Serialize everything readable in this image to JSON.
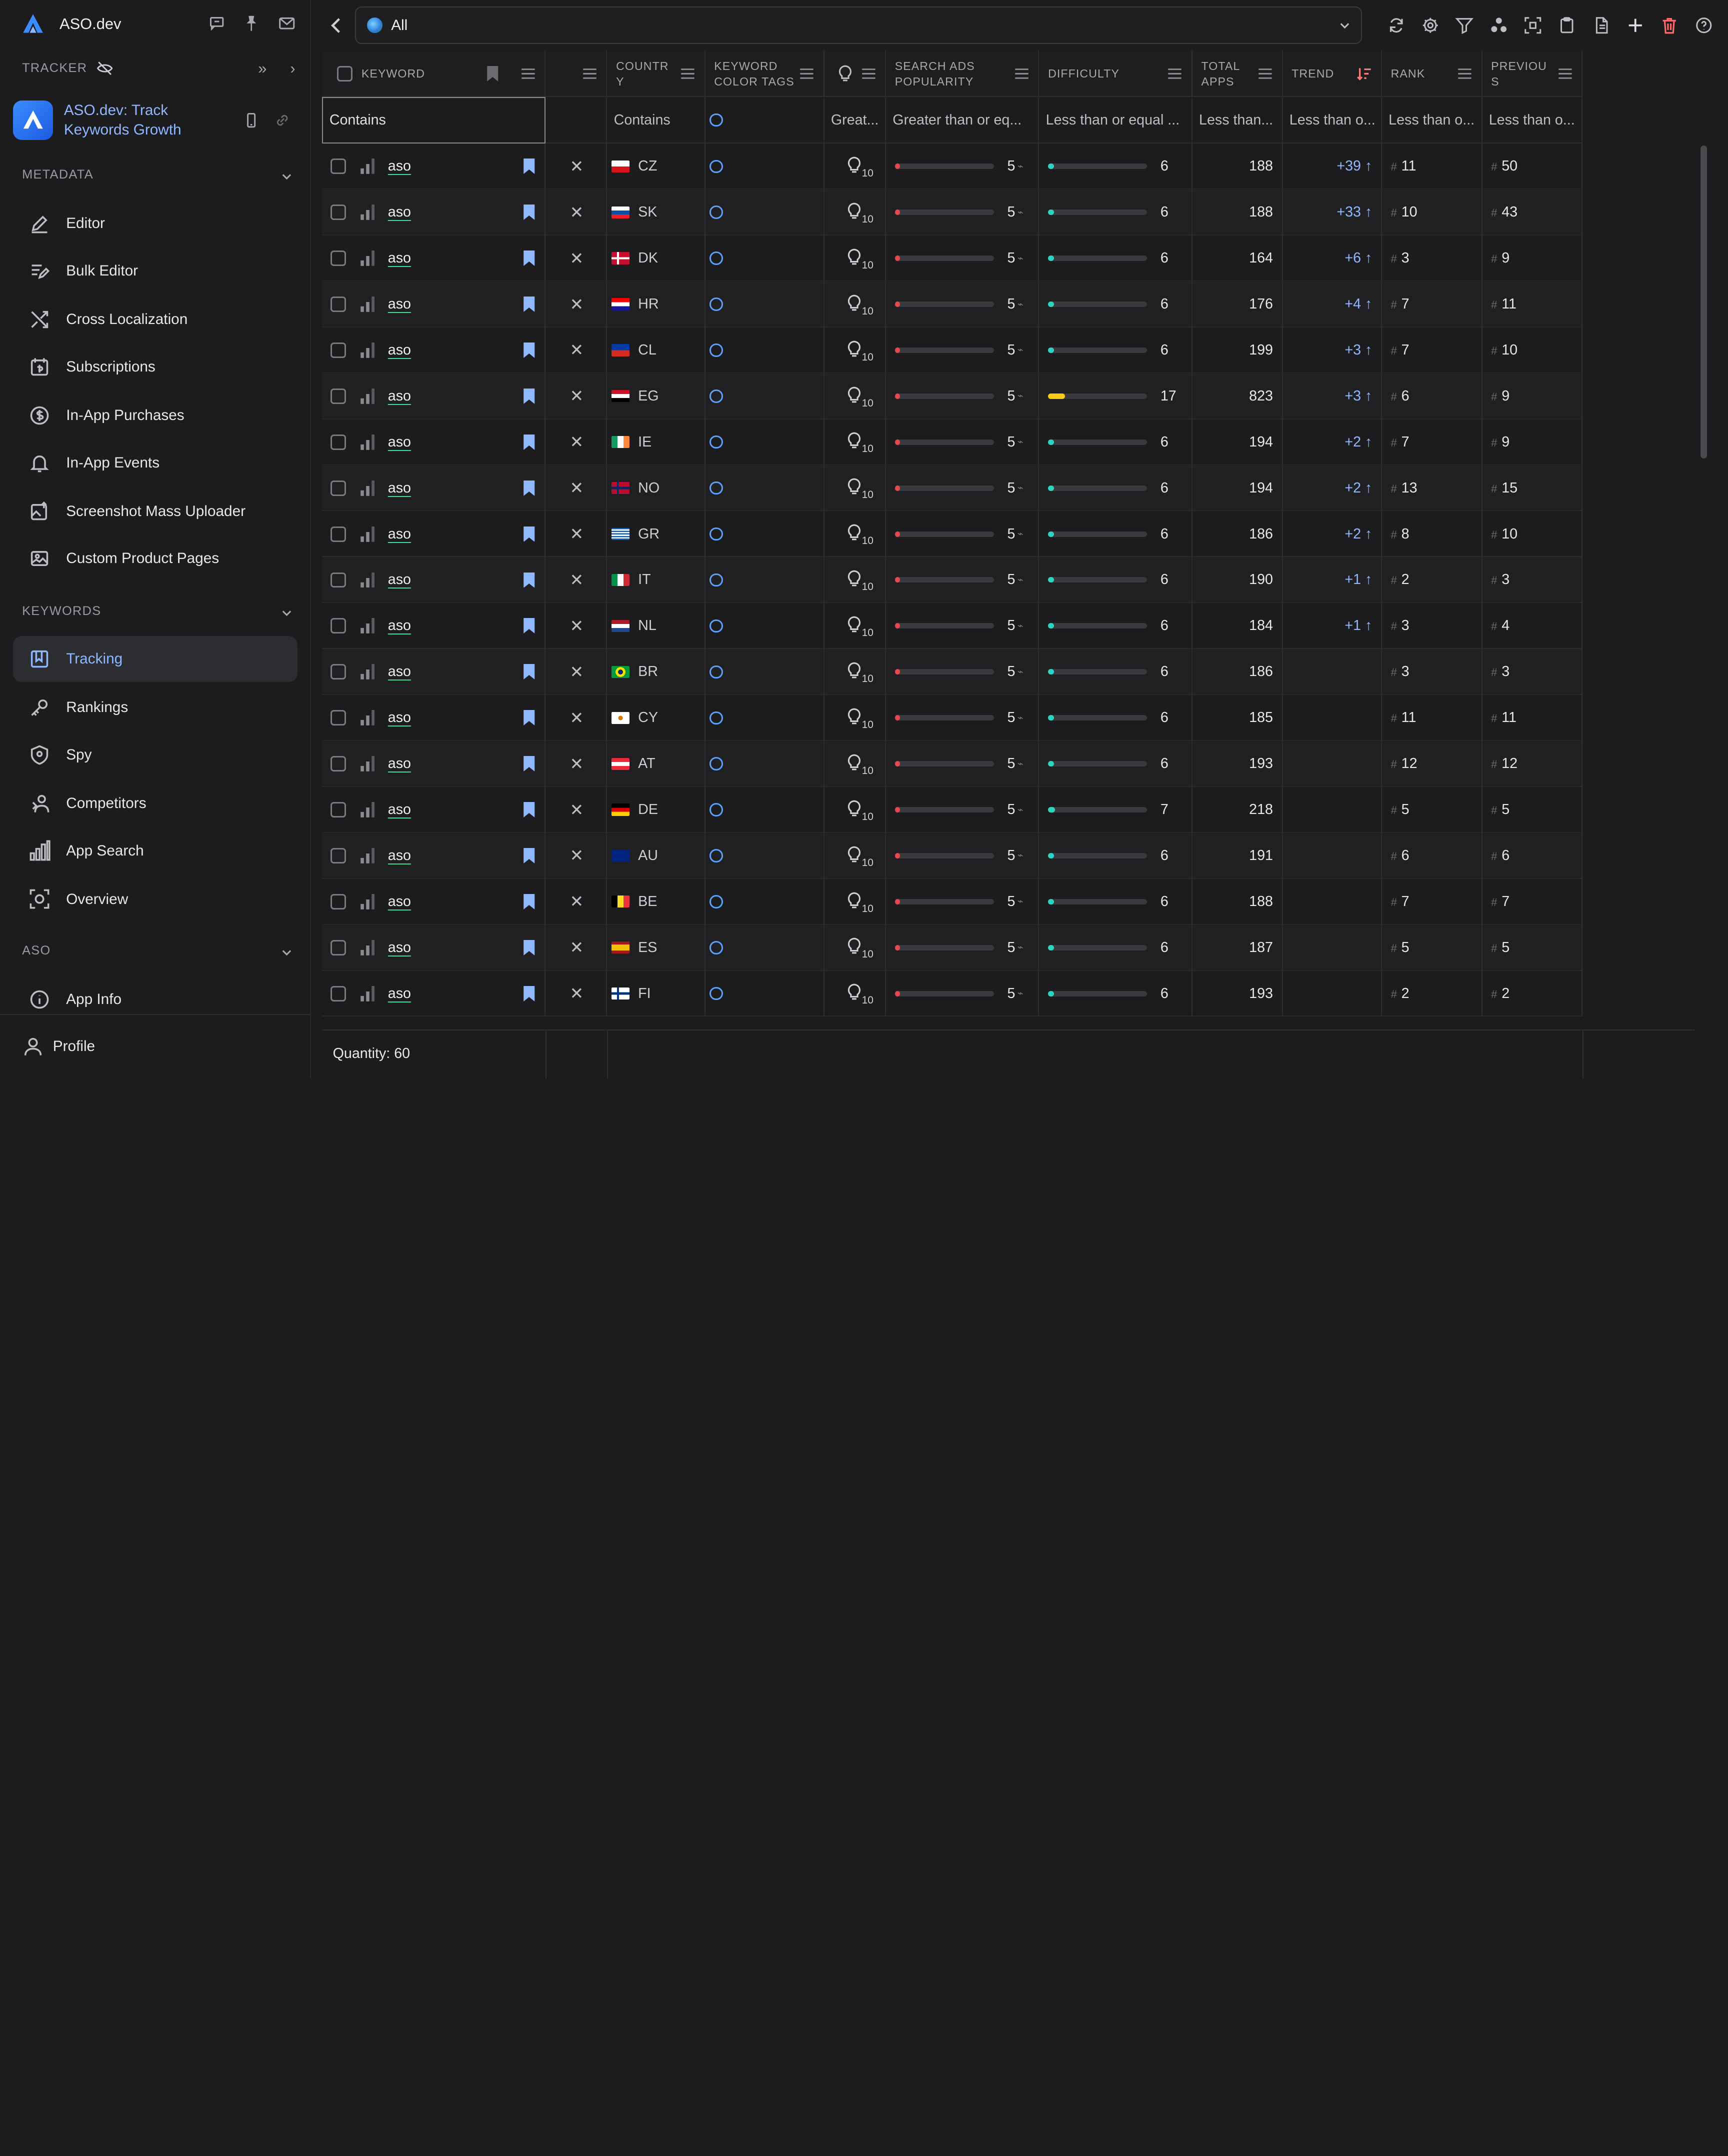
{
  "brand": {
    "name": "ASO.dev"
  },
  "sidebar": {
    "tracker_label": "TRACKER",
    "app_title_line1": "ASO.dev: Track",
    "app_title_line2": "Keywords Growth",
    "metadata_label": "METADATA",
    "metadata_items": [
      {
        "label": "Editor",
        "icon": "edit-icon"
      },
      {
        "label": "Bulk Editor",
        "icon": "bulk-edit-icon"
      },
      {
        "label": "Cross Localization",
        "icon": "cross-arrows-icon"
      },
      {
        "label": "Subscriptions",
        "icon": "subscriptions-icon"
      },
      {
        "label": "In-App Purchases",
        "icon": "dollar-icon"
      },
      {
        "label": "In-App Events",
        "icon": "bell-icon"
      },
      {
        "label": "Screenshot Mass Uploader",
        "icon": "image-upload-icon"
      },
      {
        "label": "Custom Product Pages",
        "icon": "image-icon"
      }
    ],
    "keywords_label": "KEYWORDS",
    "keywords_items": [
      {
        "label": "Tracking",
        "icon": "bookmark-icon",
        "active": true
      },
      {
        "label": "Rankings",
        "icon": "key-icon"
      },
      {
        "label": "Spy",
        "icon": "shield-icon"
      },
      {
        "label": "Competitors",
        "icon": "competitors-icon"
      },
      {
        "label": "App Search",
        "icon": "bar-chart-icon"
      },
      {
        "label": "Overview",
        "icon": "overview-icon"
      }
    ],
    "aso_label": "ASO",
    "aso_items": [
      {
        "label": "App Info",
        "icon": "info-icon"
      }
    ],
    "profile_label": "Profile"
  },
  "topbar": {
    "selected": "All"
  },
  "columns": [
    {
      "label": "KEYWORD",
      "filter": "Contains"
    },
    {
      "label": "",
      "filter": ""
    },
    {
      "label": "COUNTRY",
      "filter": "Contains"
    },
    {
      "label": "KEYWORD COLOR TAGS",
      "filter": ""
    },
    {
      "label": "",
      "filter": "Great..."
    },
    {
      "label": "SEARCH ADS POPULARITY",
      "filter": "Greater than or eq..."
    },
    {
      "label": "DIFFICULTY",
      "filter": "Less than or equal ..."
    },
    {
      "label": "TOTAL APPS",
      "filter": "Less than..."
    },
    {
      "label": "TREND",
      "filter": "Less than o..."
    },
    {
      "label": "RANK",
      "filter": "Less than o..."
    },
    {
      "label": "PREVIOUS",
      "filter": "Less than o..."
    }
  ],
  "header_labels": {
    "keyword": "KEYWORD",
    "country_1": "COUNTR",
    "country_2": "Y",
    "tags_1": "KEYWORD",
    "tags_2": "COLOR TAGS",
    "popularity_1": "SEARCH ADS",
    "popularity_2": "POPULARITY",
    "difficulty": "DIFFICULTY",
    "apps_1": "TOTAL",
    "apps_2": "APPS",
    "trend": "TREND",
    "rank": "RANK",
    "prev_1": "PREVIOU",
    "prev_2": "S"
  },
  "filters": {
    "keyword": "Contains",
    "country": "Contains",
    "bulb": "Great...",
    "popularity": "Greater than or eq...",
    "difficulty": "Less than or equal ...",
    "apps": "Less than...",
    "trend": "Less than o...",
    "rank": "Less than o...",
    "prev": "Less than o..."
  },
  "rows": [
    {
      "keyword": "aso",
      "cc": "CZ",
      "bulb": "10",
      "pop": "5",
      "diff": "6",
      "apps": "188",
      "trend": "+39",
      "rank": "11",
      "prev": "50"
    },
    {
      "keyword": "aso",
      "cc": "SK",
      "bulb": "10",
      "pop": "5",
      "diff": "6",
      "apps": "188",
      "trend": "+33",
      "rank": "10",
      "prev": "43"
    },
    {
      "keyword": "aso",
      "cc": "DK",
      "bulb": "10",
      "pop": "5",
      "diff": "6",
      "apps": "164",
      "trend": "+6",
      "rank": "3",
      "prev": "9"
    },
    {
      "keyword": "aso",
      "cc": "HR",
      "bulb": "10",
      "pop": "5",
      "diff": "6",
      "apps": "176",
      "trend": "+4",
      "rank": "7",
      "prev": "11"
    },
    {
      "keyword": "aso",
      "cc": "CL",
      "bulb": "10",
      "pop": "5",
      "diff": "6",
      "apps": "199",
      "trend": "+3",
      "rank": "7",
      "prev": "10"
    },
    {
      "keyword": "aso",
      "cc": "EG",
      "bulb": "10",
      "pop": "5",
      "diff": "17",
      "apps": "823",
      "trend": "+3",
      "rank": "6",
      "prev": "9"
    },
    {
      "keyword": "aso",
      "cc": "IE",
      "bulb": "10",
      "pop": "5",
      "diff": "6",
      "apps": "194",
      "trend": "+2",
      "rank": "7",
      "prev": "9"
    },
    {
      "keyword": "aso",
      "cc": "NO",
      "bulb": "10",
      "pop": "5",
      "diff": "6",
      "apps": "194",
      "trend": "+2",
      "rank": "13",
      "prev": "15"
    },
    {
      "keyword": "aso",
      "cc": "GR",
      "bulb": "10",
      "pop": "5",
      "diff": "6",
      "apps": "186",
      "trend": "+2",
      "rank": "8",
      "prev": "10"
    },
    {
      "keyword": "aso",
      "cc": "IT",
      "bulb": "10",
      "pop": "5",
      "diff": "6",
      "apps": "190",
      "trend": "+1",
      "rank": "2",
      "prev": "3"
    },
    {
      "keyword": "aso",
      "cc": "NL",
      "bulb": "10",
      "pop": "5",
      "diff": "6",
      "apps": "184",
      "trend": "+1",
      "rank": "3",
      "prev": "4"
    },
    {
      "keyword": "aso",
      "cc": "BR",
      "bulb": "10",
      "pop": "5",
      "diff": "6",
      "apps": "186",
      "trend": "",
      "rank": "3",
      "prev": "3"
    },
    {
      "keyword": "aso",
      "cc": "CY",
      "bulb": "10",
      "pop": "5",
      "diff": "6",
      "apps": "185",
      "trend": "",
      "rank": "11",
      "prev": "11"
    },
    {
      "keyword": "aso",
      "cc": "AT",
      "bulb": "10",
      "pop": "5",
      "diff": "6",
      "apps": "193",
      "trend": "",
      "rank": "12",
      "prev": "12"
    },
    {
      "keyword": "aso",
      "cc": "DE",
      "bulb": "10",
      "pop": "5",
      "diff": "7",
      "apps": "218",
      "trend": "",
      "rank": "5",
      "prev": "5"
    },
    {
      "keyword": "aso",
      "cc": "AU",
      "bulb": "10",
      "pop": "5",
      "diff": "6",
      "apps": "191",
      "trend": "",
      "rank": "6",
      "prev": "6"
    },
    {
      "keyword": "aso",
      "cc": "BE",
      "bulb": "10",
      "pop": "5",
      "diff": "6",
      "apps": "188",
      "trend": "",
      "rank": "7",
      "prev": "7"
    },
    {
      "keyword": "aso",
      "cc": "ES",
      "bulb": "10",
      "pop": "5",
      "diff": "6",
      "apps": "187",
      "trend": "",
      "rank": "5",
      "prev": "5"
    },
    {
      "keyword": "aso",
      "cc": "FI",
      "bulb": "10",
      "pop": "5",
      "diff": "6",
      "apps": "193",
      "trend": "",
      "rank": "2",
      "prev": "2"
    }
  ],
  "footer": {
    "quantity": "Quantity: 60"
  },
  "colors": {
    "accent": "#8fb8ff",
    "positive_underline": "#3ddc97",
    "popularity_bar": "#e5484d",
    "difficulty_low": "#2dd4bf",
    "difficulty_mid": "#facc15",
    "danger": "#ff6b6b"
  }
}
